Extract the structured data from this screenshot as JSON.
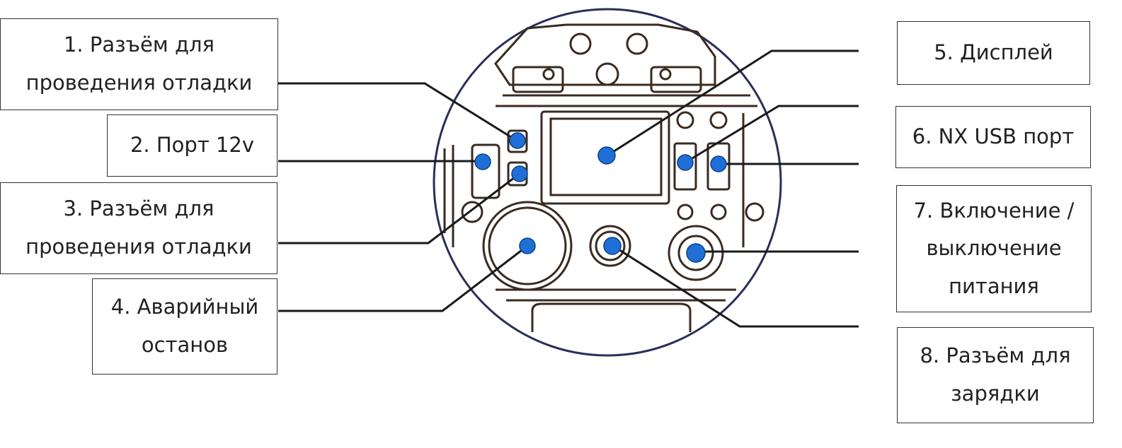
{
  "labels": [
    {
      "id": "l1",
      "text": "1. Разъём для\nпроведения отладки"
    },
    {
      "id": "l2",
      "text": "2. Порт 12v"
    },
    {
      "id": "l3",
      "text": "3. Разъём для\nпроведения отладки"
    },
    {
      "id": "l4",
      "text": "4. Аварийный\nостанов"
    },
    {
      "id": "l5",
      "text": "5. Дисплей"
    },
    {
      "id": "l6",
      "text": "6. NX USB порт"
    },
    {
      "id": "l7",
      "text": "7. Включение /\nвыключение\nпитания"
    },
    {
      "id": "l8",
      "text": "8. Разъём для\nзарядки"
    }
  ],
  "colors": {
    "marker": "#1f6fd6",
    "line": "#1a1a1a",
    "outline": "#2a2f5a",
    "device": "#3a2a20"
  }
}
